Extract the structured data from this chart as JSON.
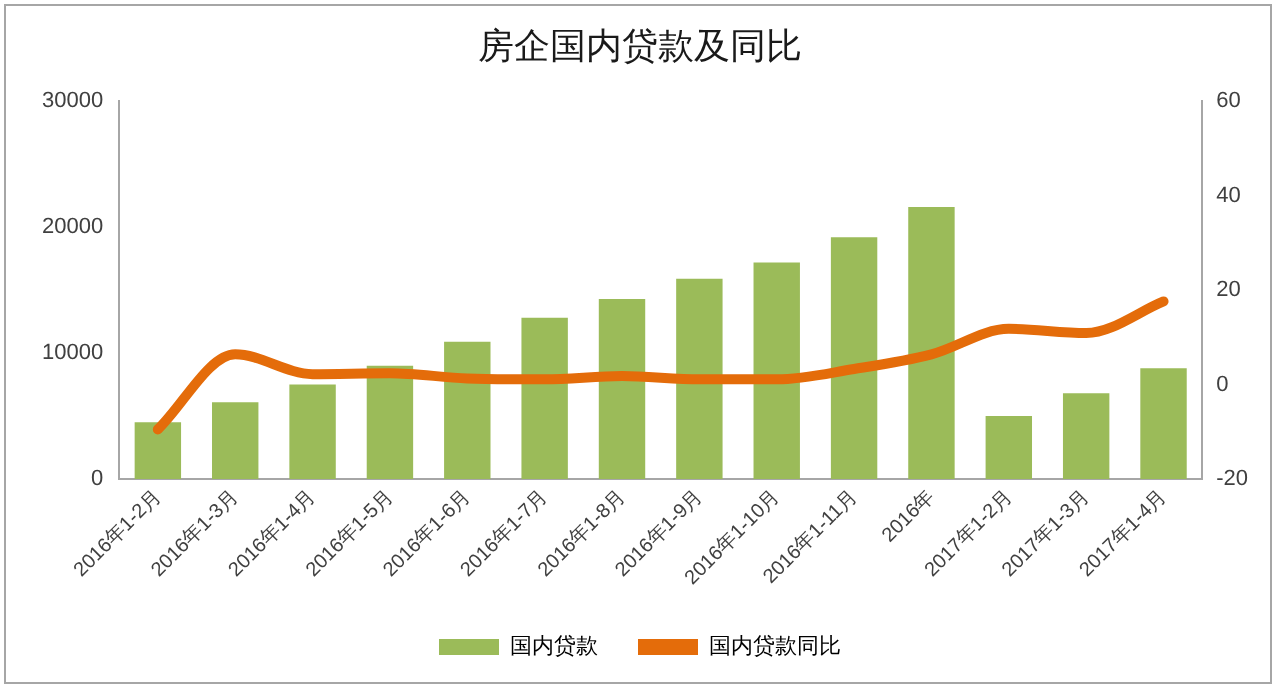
{
  "chart_data": {
    "type": "bar",
    "title": "房企国内贷款及同比",
    "categories": [
      "2016年1-2月",
      "2016年1-3月",
      "2016年1-4月",
      "2016年1-5月",
      "2016年1-6月",
      "2016年1-7月",
      "2016年1-8月",
      "2016年1-9月",
      "2016年1-10月",
      "2016年1-11月",
      "2016年",
      "2017年1-2月",
      "2017年1-3月",
      "2017年1-4月"
    ],
    "series": [
      {
        "name": "国内贷款",
        "color": "#9bbb59",
        "values": [
          4500,
          6100,
          7500,
          9000,
          10900,
          12800,
          14300,
          15900,
          17200,
          19200,
          21600,
          5000,
          6800,
          8800
        ]
      },
      {
        "name": "国内贷款同比",
        "type": "line",
        "axis": "y2",
        "color": "#e46c0a",
        "values": [
          -9.5,
          6.4,
          2.2,
          2.4,
          1.3,
          1.1,
          1.8,
          1.1,
          1.1,
          3.3,
          6.4,
          11.8,
          10.9,
          17.6
        ]
      }
    ],
    "ylim": [
      0,
      30000
    ],
    "yticks": [
      0,
      10000,
      20000,
      30000
    ],
    "y2lim": [
      -20,
      60
    ],
    "y2ticks": [
      -20,
      0,
      20,
      40,
      60
    ],
    "grid": false,
    "legend": "bottom",
    "marker": "none"
  }
}
